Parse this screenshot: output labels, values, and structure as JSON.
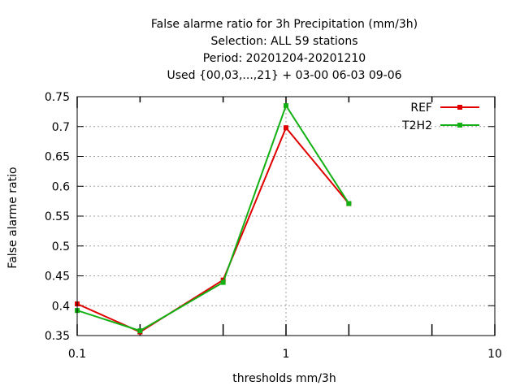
{
  "chart_data": {
    "type": "line",
    "title_lines": [
      "False alarme ratio  for 3h Precipitation (mm/3h)",
      "Selection: ALL     59 stations",
      "Period: 20201204-20201210",
      "Used {00,03,...,21} + 03-00 06-03 09-06"
    ],
    "xlabel": "thresholds mm/3h",
    "ylabel": "False alarme ratio",
    "x_scale": "log",
    "xlim": [
      0.1,
      10
    ],
    "ylim": [
      0.35,
      0.75
    ],
    "x_ticks": [
      0.1,
      1,
      10
    ],
    "x_tick_labels": [
      "0.1",
      "1",
      "10"
    ],
    "x_minor_ticks": [
      0.2,
      0.5,
      2,
      5
    ],
    "y_ticks": [
      0.35,
      0.4,
      0.45,
      0.5,
      0.55,
      0.6,
      0.65,
      0.7,
      0.75
    ],
    "y_tick_labels": [
      "0.35",
      "0.4",
      "0.45",
      "0.5",
      "0.55",
      "0.6",
      "0.65",
      "0.7",
      "0.75"
    ],
    "grid": true,
    "legend_position": "top-right",
    "series": [
      {
        "name": "REF",
        "color": "#e00000",
        "x": [
          0.1,
          0.2,
          0.5,
          1,
          2
        ],
        "y": [
          0.403,
          0.356,
          0.443,
          0.698,
          0.571
        ]
      },
      {
        "name": "T2H2",
        "color": "#12b012",
        "x": [
          0.1,
          0.2,
          0.5,
          1,
          2
        ],
        "y": [
          0.392,
          0.358,
          0.439,
          0.735,
          0.571
        ]
      }
    ]
  }
}
